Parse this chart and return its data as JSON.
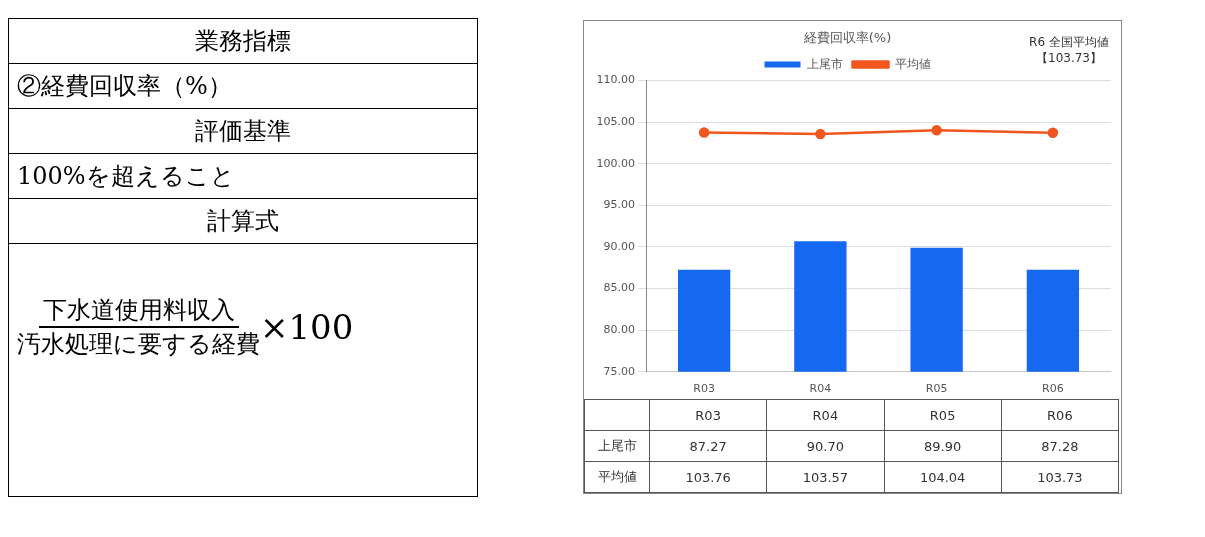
{
  "chart_data": {
    "type": "bar",
    "title": "経費回収率(%)",
    "categories": [
      "R03",
      "R04",
      "R05",
      "R06"
    ],
    "series": [
      {
        "name": "上尾市",
        "color": "#1469f0",
        "values": [
          87.27,
          90.7,
          89.9,
          87.28
        ],
        "value_labels": [
          "87.27",
          "90.70",
          "89.90",
          "87.28"
        ]
      },
      {
        "name": "平均値",
        "type": "line",
        "color": "#f0561e",
        "values": [
          103.76,
          103.57,
          104.04,
          103.73
        ],
        "value_labels": [
          "103.76",
          "103.57",
          "104.04",
          "103.73"
        ]
      }
    ],
    "ylim": [
      75,
      110
    ],
    "yticks": [
      {
        "value": 75,
        "label": "75.00"
      },
      {
        "value": 80,
        "label": "80.00"
      },
      {
        "value": 85,
        "label": "85.00"
      },
      {
        "value": 90,
        "label": "90.00"
      },
      {
        "value": 95,
        "label": "95.00"
      },
      {
        "value": 100,
        "label": "100.00"
      },
      {
        "value": 105,
        "label": "105.00"
      },
      {
        "value": 110,
        "label": "110.00"
      }
    ],
    "grid": "y",
    "legend": "top",
    "marker": "circle",
    "line_style": "solid",
    "annotations": [
      "業務指標",
      "②経費回収率（%）",
      "評価基準",
      "100%を超えること",
      "計算式",
      "下水道使用料収入",
      "汚水処理に要する経費",
      "×100",
      "R6 全国平均値",
      "【103.73】"
    ]
  }
}
